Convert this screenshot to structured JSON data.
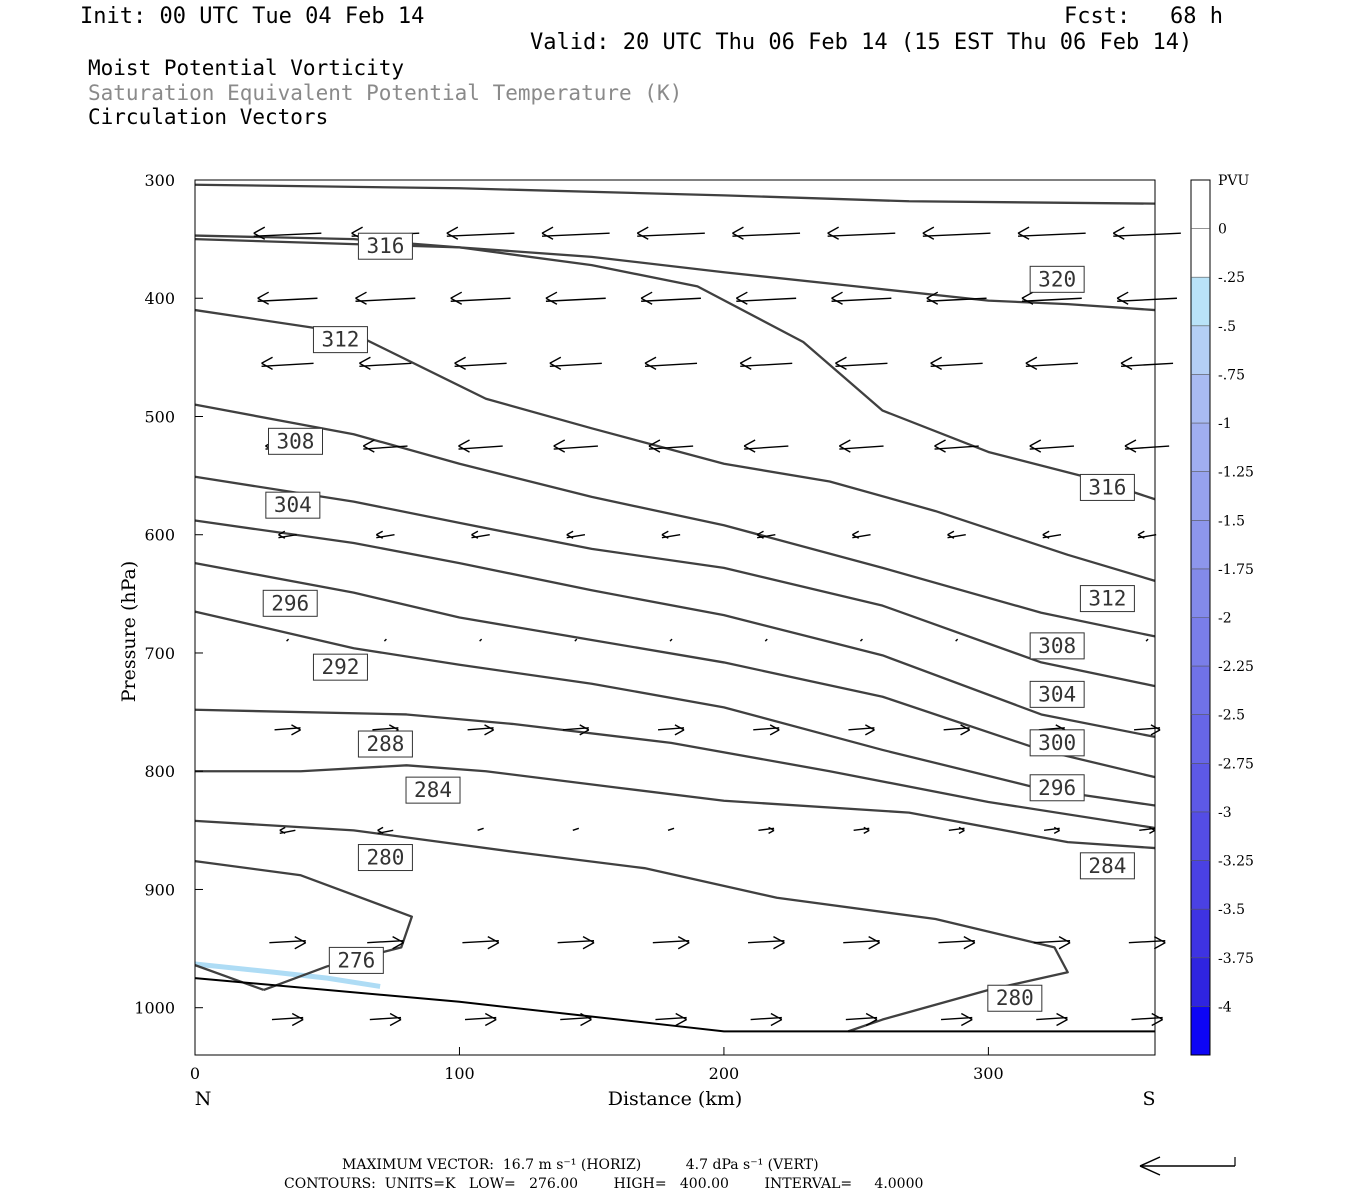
{
  "header": {
    "init": "Init: 00 UTC Tue 04 Feb 14",
    "fcst": "Fcst:   68 h",
    "valid": "Valid: 20 UTC Thu 06 Feb 14 (15 EST Thu 06 Feb 14)",
    "fields": [
      "Moist Potential Vorticity",
      "Saturation Equivalent Potential Temperature (K)",
      "Circulation Vectors"
    ]
  },
  "footer": {
    "line1": "MAXIMUM VECTOR:  16.7 m s⁻¹ (HORIZ)          4.7 dPa s⁻¹ (VERT)",
    "line2": "CONTOURS:  UNITS=K   LOW=   276.00        HIGH=   400.00        INTERVAL=     4.0000"
  },
  "colors": {
    "contour": "#404040",
    "vector": "#000000",
    "mpv_light": "#aedcf5"
  },
  "chart_data": {
    "type": "cross-section",
    "xlabel": "Distance (km)",
    "ylabel": "Pressure (hPa)",
    "xlim": [
      0,
      363
    ],
    "ylim": [
      300,
      1040
    ],
    "y_scale": "linear, inverted",
    "x_ticks": [
      0,
      100,
      200,
      300
    ],
    "y_ticks": [
      300,
      400,
      500,
      600,
      700,
      800,
      900,
      1000
    ],
    "left_end_label": "N",
    "right_end_label": "S",
    "colorbar": {
      "title": "PVU",
      "labels": [
        "0",
        "-.25",
        "-.5",
        "-.75",
        "-1",
        "-1.25",
        "-1.5",
        "-1.75",
        "-2",
        "-2.25",
        "-2.5",
        "-2.75",
        "-3",
        "-3.25",
        "-3.5",
        "-3.75",
        "-4"
      ],
      "colors": [
        "#ffffff",
        "#ffffff",
        "#b9e3f8",
        "#b4cff5",
        "#a9bbf2",
        "#a0aef0",
        "#96a2ee",
        "#8d96ec",
        "#838aea",
        "#7a7ee9",
        "#7072e8",
        "#6766e7",
        "#5d59e6",
        "#544de5",
        "#4a41e4",
        "#3e33e2",
        "#2f24e0",
        "#0d05f5"
      ]
    },
    "contour_levels": [
      276,
      280,
      284,
      288,
      292,
      296,
      300,
      304,
      308,
      312,
      316,
      320
    ],
    "contours": [
      {
        "level": 320,
        "points": [
          [
            0,
            304
          ],
          [
            100,
            307
          ],
          [
            200,
            313
          ],
          [
            270,
            318
          ],
          [
            363,
            320
          ]
        ]
      },
      {
        "level": 320,
        "points": [
          [
            0,
            350
          ],
          [
            100,
            357
          ],
          [
            150,
            365
          ],
          [
            200,
            378
          ],
          [
            250,
            390
          ],
          [
            300,
            402
          ],
          [
            330,
            405
          ],
          [
            363,
            410
          ]
        ]
      },
      {
        "level": 316,
        "points": [
          [
            0,
            347
          ],
          [
            60,
            350
          ],
          [
            100,
            357
          ],
          [
            150,
            372
          ],
          [
            190,
            390
          ],
          [
            230,
            437
          ],
          [
            260,
            495
          ],
          [
            300,
            530
          ],
          [
            340,
            553
          ],
          [
            363,
            570
          ]
        ]
      },
      {
        "level": 312,
        "points": [
          [
            0,
            410
          ],
          [
            60,
            430
          ],
          [
            110,
            485
          ],
          [
            150,
            510
          ],
          [
            200,
            540
          ],
          [
            240,
            555
          ],
          [
            280,
            580
          ],
          [
            330,
            617
          ],
          [
            363,
            639
          ]
        ]
      },
      {
        "level": 308,
        "points": [
          [
            0,
            490
          ],
          [
            60,
            515
          ],
          [
            100,
            540
          ],
          [
            150,
            568
          ],
          [
            200,
            592
          ],
          [
            260,
            628
          ],
          [
            320,
            666
          ],
          [
            363,
            686
          ]
        ]
      },
      {
        "level": 304,
        "points": [
          [
            0,
            551
          ],
          [
            60,
            572
          ],
          [
            100,
            590
          ],
          [
            150,
            612
          ],
          [
            200,
            628
          ],
          [
            260,
            660
          ],
          [
            320,
            708
          ],
          [
            363,
            728
          ]
        ]
      },
      {
        "level": 300,
        "points": [
          [
            0,
            588
          ],
          [
            60,
            607
          ],
          [
            100,
            624
          ],
          [
            150,
            647
          ],
          [
            200,
            668
          ],
          [
            260,
            702
          ],
          [
            320,
            752
          ],
          [
            363,
            771
          ]
        ]
      },
      {
        "level": 296,
        "points": [
          [
            0,
            624
          ],
          [
            60,
            649
          ],
          [
            100,
            670
          ],
          [
            150,
            689
          ],
          [
            200,
            708
          ],
          [
            260,
            737
          ],
          [
            320,
            782
          ],
          [
            363,
            805
          ]
        ]
      },
      {
        "level": 292,
        "points": [
          [
            0,
            665
          ],
          [
            60,
            696
          ],
          [
            100,
            710
          ],
          [
            150,
            726
          ],
          [
            200,
            746
          ],
          [
            260,
            782
          ],
          [
            320,
            815
          ],
          [
            363,
            829
          ]
        ]
      },
      {
        "level": 288,
        "points": [
          [
            0,
            748
          ],
          [
            80,
            752
          ],
          [
            120,
            760
          ],
          [
            180,
            776
          ],
          [
            240,
            800
          ],
          [
            300,
            826
          ],
          [
            363,
            848
          ]
        ]
      },
      {
        "level": 284,
        "points": [
          [
            0,
            800
          ],
          [
            40,
            800
          ],
          [
            80,
            795
          ],
          [
            110,
            800
          ],
          [
            160,
            814
          ],
          [
            200,
            825
          ],
          [
            270,
            835
          ],
          [
            330,
            860
          ],
          [
            363,
            865
          ]
        ]
      },
      {
        "level": 280,
        "points": [
          [
            0,
            842
          ],
          [
            60,
            850
          ],
          [
            120,
            868
          ],
          [
            170,
            882
          ],
          [
            220,
            907
          ],
          [
            280,
            925
          ],
          [
            325,
            949
          ],
          [
            330,
            970
          ],
          [
            300,
            985
          ],
          [
            260,
            1010
          ],
          [
            247,
            1020
          ]
        ]
      },
      {
        "level": 280,
        "points": [
          [
            0,
            876
          ],
          [
            40,
            888
          ],
          [
            82,
            923
          ],
          [
            78,
            949
          ],
          [
            50,
            965
          ],
          [
            26,
            985
          ]
        ]
      },
      {
        "level": 276,
        "points": [
          [
            0,
            964
          ],
          [
            26,
            985
          ]
        ]
      }
    ],
    "contour_labels": [
      {
        "level": "316",
        "x": 72,
        "p": 356
      },
      {
        "level": "320",
        "x": 326,
        "p": 384
      },
      {
        "level": "312",
        "x": 55,
        "p": 435
      },
      {
        "level": "308",
        "x": 38,
        "p": 521
      },
      {
        "level": "304",
        "x": 37,
        "p": 575
      },
      {
        "level": "316",
        "x": 345,
        "p": 560
      },
      {
        "level": "296",
        "x": 36,
        "p": 658
      },
      {
        "level": "312",
        "x": 345,
        "p": 654
      },
      {
        "level": "308",
        "x": 326,
        "p": 694
      },
      {
        "level": "292",
        "x": 55,
        "p": 712
      },
      {
        "level": "304",
        "x": 326,
        "p": 735
      },
      {
        "level": "288",
        "x": 72,
        "p": 777
      },
      {
        "level": "300",
        "x": 326,
        "p": 776
      },
      {
        "level": "284",
        "x": 90,
        "p": 816
      },
      {
        "level": "296",
        "x": 326,
        "p": 814
      },
      {
        "level": "280",
        "x": 72,
        "p": 873
      },
      {
        "level": "284",
        "x": 345,
        "p": 880
      },
      {
        "level": "276",
        "x": 61,
        "p": 960
      },
      {
        "level": "280",
        "x": 310,
        "p": 992
      }
    ],
    "mpv_shading": [
      {
        "range": "-.25 to -.5",
        "points": [
          [
            0,
            963
          ],
          [
            30,
            970
          ],
          [
            50,
            975
          ],
          [
            70,
            982
          ]
        ]
      }
    ],
    "vector_rows": [
      {
        "p": 345,
        "x": [
          35,
          72,
          108,
          144,
          180,
          216,
          252,
          288,
          324,
          360
        ],
        "u": [
          -1,
          -1,
          -1,
          -1,
          -1,
          -1,
          -1,
          -1,
          -1,
          -1
        ],
        "len": 26
      },
      {
        "p": 400,
        "x": [
          35,
          72,
          108,
          144,
          180,
          216,
          252,
          288,
          324,
          360
        ],
        "u": [
          -1,
          -1,
          -1,
          -1,
          -1,
          -1,
          -1,
          -1,
          -1,
          -1
        ],
        "len": 23
      },
      {
        "p": 455,
        "x": [
          35,
          72,
          108,
          144,
          180,
          216,
          252,
          288,
          324,
          360
        ],
        "u": [
          -1,
          -1,
          -1,
          -1,
          -1,
          -1,
          -1,
          -1,
          -1,
          -1
        ],
        "len": 20
      },
      {
        "p": 525,
        "x": [
          35,
          72,
          108,
          144,
          180,
          216,
          252,
          288,
          324,
          360
        ],
        "u": [
          -1,
          -1,
          -1,
          -1,
          -1,
          -1,
          -1,
          -1,
          -1,
          -1
        ],
        "len": 17
      },
      {
        "p": 600,
        "x": [
          35,
          72,
          108,
          144,
          180,
          216,
          252,
          288,
          324,
          360
        ],
        "u": [
          -1,
          -1,
          -1,
          -1,
          -1,
          -1,
          -1,
          -1,
          -1,
          -1
        ],
        "len": 7
      },
      {
        "p": 690,
        "x": [
          35,
          72,
          108,
          144,
          180,
          216,
          252,
          288,
          324,
          360
        ],
        "u": [
          0,
          0,
          0,
          0,
          0,
          0,
          0,
          0,
          0,
          0
        ],
        "len": 2
      },
      {
        "p": 765,
        "x": [
          35,
          72,
          108,
          144,
          180,
          216,
          252,
          288,
          324,
          360
        ],
        "u": [
          1,
          1,
          1,
          1,
          1,
          1,
          1,
          1,
          1,
          1
        ],
        "len": 10
      },
      {
        "p": 850,
        "x": [
          35,
          72,
          108,
          144,
          180,
          216,
          252,
          288,
          324,
          360
        ],
        "u": [
          -1,
          -1,
          0,
          0,
          0,
          1,
          1,
          1,
          1,
          1
        ],
        "len": 6
      },
      {
        "p": 945,
        "x": [
          35,
          72,
          108,
          144,
          180,
          216,
          252,
          288,
          324,
          360
        ],
        "u": [
          1,
          1,
          1,
          1,
          1,
          1,
          1,
          1,
          1,
          1
        ],
        "len": 14
      },
      {
        "p": 1010,
        "x": [
          35,
          72,
          108,
          144,
          180,
          216,
          252,
          288,
          324,
          360
        ],
        "u": [
          1,
          1,
          1,
          1,
          1,
          1,
          1,
          1,
          1,
          1
        ],
        "len": 12
      }
    ],
    "reference_vector": "left-pointing arrow, bottom-right"
  }
}
